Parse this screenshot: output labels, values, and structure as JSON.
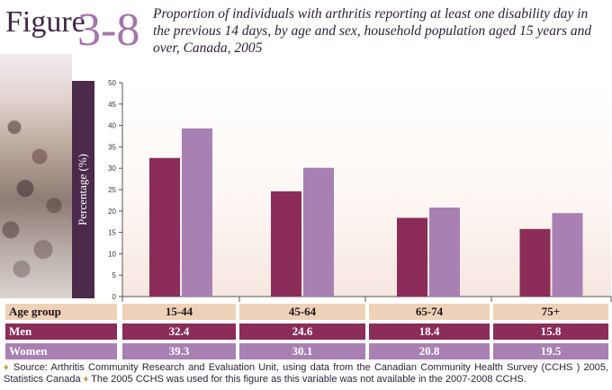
{
  "figure": {
    "label": "Figure",
    "number": "3-8",
    "title": "Proportion of individuals with arthritis reporting at least one disability day in the previous 14 days, by age and sex, household population aged 15 years and over, Canada, 2005"
  },
  "colors": {
    "men": "#8b2d58",
    "women": "#a880b4",
    "accent_dark": "#4b2a4b",
    "table_header": "#eed2b8"
  },
  "chart_data": {
    "type": "bar",
    "categories": [
      "15-44",
      "45-64",
      "65-74",
      "75+"
    ],
    "series": [
      {
        "name": "Men",
        "values": [
          32.4,
          24.6,
          18.4,
          15.8
        ]
      },
      {
        "name": "Women",
        "values": [
          39.3,
          30.1,
          20.8,
          19.5
        ]
      }
    ],
    "ylabel": "Percentage (%)",
    "ylim": [
      0,
      50
    ],
    "yticks": [
      "0",
      "5",
      "10",
      "15",
      "20",
      "25",
      "30",
      "35",
      "40",
      "45",
      "50"
    ],
    "grid": false,
    "legend": "table-below"
  },
  "table": {
    "header_label": "Age group",
    "ages": [
      "15-44",
      "45-64",
      "65-74",
      "75+"
    ],
    "men_label": "Men",
    "men_values": [
      "32.4",
      "24.6",
      "18.4",
      "15.8"
    ],
    "women_label": "Women",
    "women_values": [
      "39.3",
      "30.1",
      "20.8",
      "19.5"
    ]
  },
  "source": {
    "text1": "Source: Arthritis Community Research and Evaluation Unit, using data from the Canadian Community Health Survey (CCHS ) 2005, Statistics Canada",
    "text2": "The 2005 CCHS was used for this figure as this variable was not available in the 2007-2008 CCHS."
  }
}
